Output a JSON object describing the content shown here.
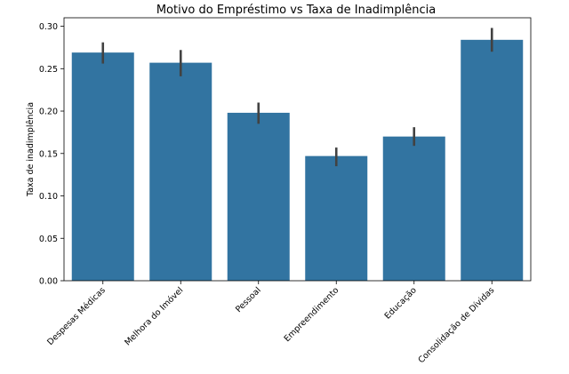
{
  "chart_data": {
    "type": "bar",
    "title": "Motivo do Empréstimo vs Taxa de Inadimplência",
    "xlabel": "",
    "ylabel": "Taxa de inadimplência",
    "categories": [
      "Despesas Médicas",
      "Melhora do Imóvel",
      "Pessoal",
      "Empreendimento",
      "Educação",
      "Consolidação de Dívidas"
    ],
    "values": [
      0.269,
      0.257,
      0.198,
      0.147,
      0.17,
      0.284
    ],
    "error_low": [
      0.256,
      0.241,
      0.185,
      0.135,
      0.159,
      0.27
    ],
    "error_high": [
      0.281,
      0.272,
      0.21,
      0.157,
      0.181,
      0.298
    ],
    "ylim": [
      0,
      0.31
    ],
    "yticks": [
      "0.00",
      "0.05",
      "0.10",
      "0.15",
      "0.20",
      "0.25",
      "0.30"
    ],
    "bar_color": "#3274a1",
    "error_color": "#424242",
    "grid": false
  }
}
